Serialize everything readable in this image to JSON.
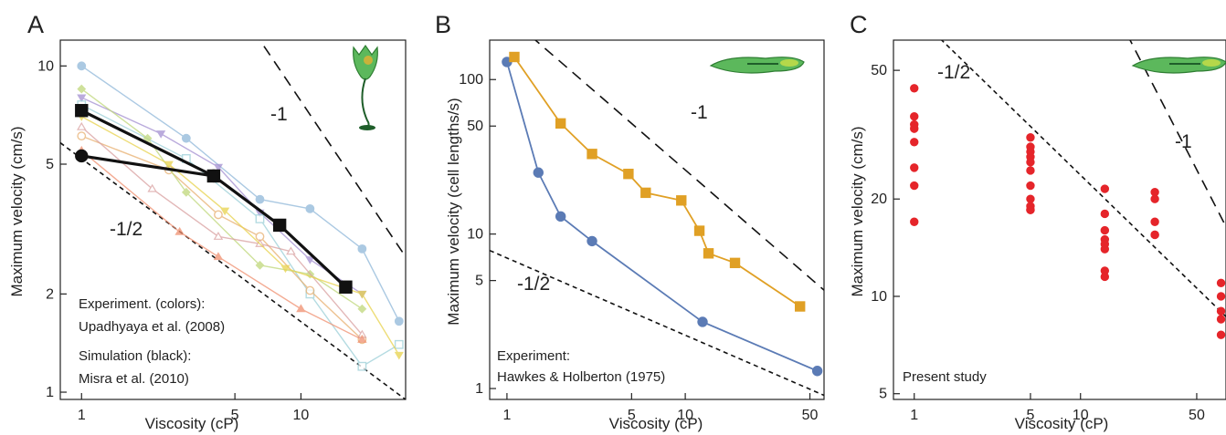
{
  "figure": {
    "panels": [
      {
        "letter": "A",
        "xlabel": "Viscosity (cP)",
        "ylabel": "Maximum velocity (cm/s)",
        "xticks": [
          1,
          5,
          10
        ],
        "yticks": [
          1,
          2,
          5,
          10
        ],
        "slope_labels": [
          {
            "text": "-1"
          },
          {
            "text": "-1/2"
          }
        ],
        "annotations": [
          "Experiment. (colors):",
          "Upadhyaya et al. (2008)",
          "Simulation (black):",
          "Misra et al. (2010)"
        ],
        "icon": "green-flagellate-cell-icon"
      },
      {
        "letter": "B",
        "xlabel": "Viscosity (cP)",
        "ylabel": "Maximum velocity (cell lengths/s)",
        "xticks": [
          1,
          5,
          10,
          50
        ],
        "yticks": [
          1,
          5,
          10,
          50,
          100
        ],
        "slope_labels": [
          {
            "text": "-1"
          },
          {
            "text": "-1/2"
          }
        ],
        "annotations": [
          "Experiment:",
          "Hawkes & Holberton (1975)"
        ],
        "icon": "green-elongated-cell-icon"
      },
      {
        "letter": "C",
        "xlabel": "Viscosity (cP)",
        "ylabel": "Maximum velocity (cm/s)",
        "xticks": [
          1,
          5,
          10,
          50
        ],
        "yticks": [
          5,
          10,
          20,
          50
        ],
        "slope_labels": [
          {
            "text": "-1/2"
          },
          {
            "text": "-1"
          }
        ],
        "annotations": [
          "Present study"
        ],
        "icon": "green-elongated-cell-icon"
      }
    ]
  },
  "colors": {
    "black": "#111111",
    "blue": "#5b7bb5",
    "orange": "#e0a025",
    "red": "#e5252a",
    "cell_green": "#5cb85c",
    "palette": [
      "#8fb7d9",
      "#a38fd1",
      "#e8b070",
      "#bfd77a",
      "#d9a0a0",
      "#f09070",
      "#e8d24c",
      "#9ccfd8"
    ]
  },
  "chart_data": [
    {
      "type": "line",
      "xscale": "log",
      "yscale": "log",
      "xlim": [
        0.8,
        30
      ],
      "ylim": [
        0.95,
        12
      ],
      "series": [
        {
          "color": "#111111",
          "style": "simulation",
          "marker": "square",
          "x": [
            1,
            4,
            8,
            16
          ],
          "y": [
            7.3,
            4.6,
            3.25,
            2.1
          ]
        },
        {
          "color": "#111111",
          "style": "simulation",
          "marker": "circle",
          "x": [
            1,
            4
          ],
          "y": [
            5.3,
            4.6
          ]
        },
        {
          "color": "#8fb7d9",
          "style": "experiment",
          "marker": "circle",
          "x": [
            1,
            3,
            6.5,
            11,
            19,
            28
          ],
          "y": [
            10,
            6,
            3.9,
            3.65,
            2.75,
            1.65
          ]
        },
        {
          "color": "#a38fd1",
          "style": "experiment",
          "marker": "triangle-down",
          "x": [
            1,
            2.3,
            4.2,
            6.5,
            11,
            19
          ],
          "y": [
            8.0,
            6.2,
            4.9,
            3.55,
            2.55,
            2.0
          ]
        },
        {
          "color": "#9ccfd8",
          "style": "experiment",
          "marker": "square-open",
          "x": [
            1,
            3,
            6.5,
            11,
            19,
            28
          ],
          "y": [
            7.6,
            5.2,
            3.4,
            2.0,
            1.2,
            1.4
          ]
        },
        {
          "color": "#e8b070",
          "style": "experiment",
          "marker": "circle-open",
          "x": [
            1,
            2.5,
            4.2,
            6.5,
            11,
            19
          ],
          "y": [
            6.1,
            4.8,
            3.5,
            3.0,
            2.05,
            1.45
          ]
        },
        {
          "color": "#bfd77a",
          "style": "experiment",
          "marker": "diamond",
          "x": [
            1,
            2,
            3,
            6.5,
            11,
            19
          ],
          "y": [
            8.5,
            6.0,
            4.1,
            2.45,
            2.3,
            1.8
          ]
        },
        {
          "color": "#d9a0a0",
          "style": "experiment",
          "marker": "triangle-up-open",
          "x": [
            1,
            2.1,
            4.2,
            6.5,
            9,
            19
          ],
          "y": [
            6.5,
            4.2,
            3.0,
            2.85,
            2.7,
            1.5
          ]
        },
        {
          "color": "#f09070",
          "style": "experiment",
          "marker": "triangle-up",
          "x": [
            1,
            2.8,
            4.2,
            10,
            19
          ],
          "y": [
            5.5,
            3.1,
            2.6,
            1.8,
            1.45
          ]
        },
        {
          "color": "#e8d24c",
          "style": "experiment",
          "marker": "triangle-down",
          "x": [
            1,
            2.5,
            4.5,
            8.5,
            19,
            28
          ],
          "y": [
            7.0,
            5.0,
            3.6,
            2.4,
            2.0,
            1.3
          ]
        }
      ],
      "reference_lines": [
        {
          "label": "-1",
          "slope": -1,
          "through": [
            6.5,
            12
          ]
        },
        {
          "label": "-1/2",
          "slope": -0.5,
          "through": [
            1,
            5.2
          ]
        }
      ]
    },
    {
      "type": "line",
      "xscale": "log",
      "yscale": "log",
      "xlim": [
        0.8,
        60
      ],
      "ylim": [
        0.85,
        180
      ],
      "series": [
        {
          "color": "#5b7bb5",
          "marker": "circle",
          "x": [
            1,
            1.5,
            2,
            3,
            12.5,
            55
          ],
          "y": [
            130,
            25,
            13,
            9,
            2.7,
            1.3
          ]
        },
        {
          "color": "#e0a025",
          "marker": "square",
          "x": [
            1.1,
            2,
            3,
            4.8,
            6,
            9.5,
            12,
            13.5,
            19,
            44
          ],
          "y": [
            140,
            52,
            33,
            24.5,
            18.5,
            16.5,
            10.5,
            7.5,
            6.5,
            3.4
          ]
        }
      ],
      "reference_lines": [
        {
          "label": "-1",
          "slope": -1,
          "through": [
            10,
            26
          ]
        },
        {
          "label": "-1/2",
          "slope": -0.5,
          "through": [
            1,
            7
          ]
        }
      ]
    },
    {
      "type": "scatter",
      "xscale": "log",
      "yscale": "log",
      "xlim": [
        0.75,
        75
      ],
      "ylim": [
        4.8,
        62
      ],
      "series": [
        {
          "color": "#e5252a",
          "x": [
            1,
            1,
            1,
            1,
            1,
            1,
            1,
            1,
            5,
            5,
            5,
            5,
            5,
            5,
            5,
            5,
            5,
            5,
            5,
            14,
            14,
            14,
            14,
            14,
            14,
            14,
            14,
            28,
            28,
            28,
            28,
            28,
            70,
            70,
            70,
            70,
            70
          ],
          "y": [
            44,
            36,
            34,
            33,
            30,
            25,
            22,
            17,
            31,
            29,
            28,
            27,
            26,
            24.5,
            22,
            20,
            19,
            18.5,
            18.5,
            21.5,
            18,
            16,
            15,
            14.5,
            14,
            12,
            11.5,
            21,
            20,
            17,
            15.5,
            15.5,
            11,
            10,
            9,
            8.5,
            7.6
          ]
        }
      ],
      "reference_lines": [
        {
          "label": "-1/2",
          "slope": -0.5,
          "through": [
            1,
            75
          ]
        },
        {
          "label": "-1",
          "slope": -1,
          "through": [
            14,
            88
          ]
        }
      ]
    }
  ]
}
